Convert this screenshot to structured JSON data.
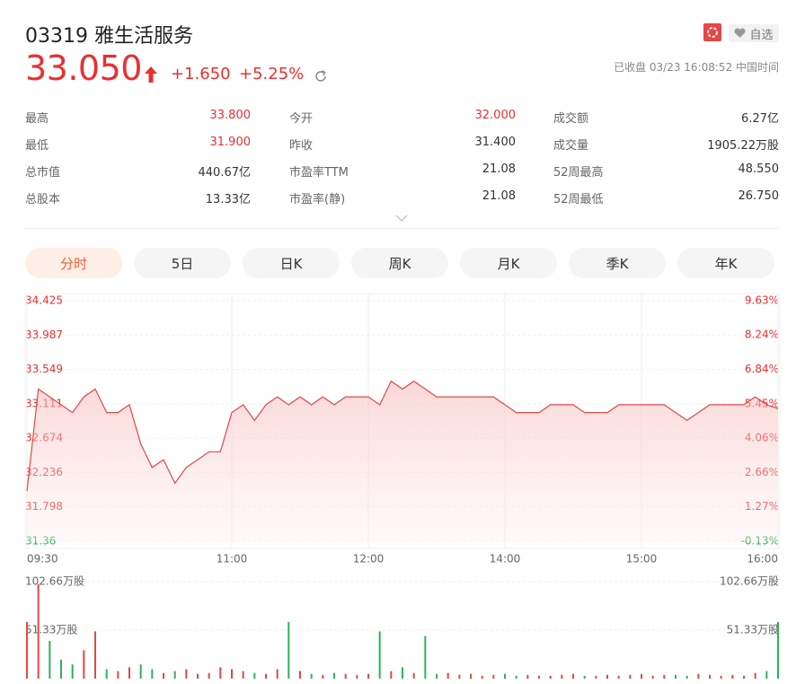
{
  "header": {
    "code": "03319",
    "name": "雅生活服务",
    "watch": "自选",
    "price": "33.050",
    "change": "+1.650",
    "change_pct": "+5.25%",
    "status": "已收盘 03/23 16:08:52 中国时间"
  },
  "stats": [
    [
      {
        "label": "最高",
        "value": "33.800",
        "color": "#e93030"
      },
      {
        "label": "今开",
        "value": "32.000",
        "color": "#e93030"
      },
      {
        "label": "成交额",
        "value": "6.27亿"
      }
    ],
    [
      {
        "label": "最低",
        "value": "31.900",
        "color": "#e93030"
      },
      {
        "label": "昨收",
        "value": "31.400"
      },
      {
        "label": "成交量",
        "value": "1905.22万股"
      }
    ],
    [
      {
        "label": "总市值",
        "value": "440.67亿"
      },
      {
        "label": "市盈率TTM",
        "value": "21.08"
      },
      {
        "label": "52周最高",
        "value": "48.550"
      }
    ],
    [
      {
        "label": "总股本",
        "value": "13.33亿"
      },
      {
        "label": "市盈率(静)",
        "value": "21.08"
      },
      {
        "label": "52周最低",
        "value": "26.750"
      }
    ]
  ],
  "tabs": {
    "items": [
      "分时",
      "5日",
      "日K",
      "周K",
      "月K",
      "季K",
      "年K"
    ],
    "active": 0
  },
  "chart_data": [
    {
      "type": "line",
      "grid": true,
      "categories": [
        "09:30",
        null,
        null,
        null,
        null,
        null,
        null,
        null,
        null,
        null,
        null,
        null,
        null,
        null,
        null,
        null,
        null,
        null,
        "11:00",
        null,
        null,
        null,
        null,
        null,
        null,
        null,
        null,
        null,
        null,
        null,
        "12:00",
        null,
        null,
        null,
        null,
        null,
        null,
        null,
        null,
        null,
        null,
        null,
        "14:00",
        null,
        null,
        null,
        null,
        null,
        null,
        null,
        null,
        null,
        null,
        null,
        "15:00",
        null,
        null,
        null,
        null,
        null,
        null,
        null,
        null,
        null,
        null,
        null,
        "16:00"
      ],
      "series": [
        {
          "color": "#e04848",
          "values": [
            32.0,
            33.3,
            33.2,
            33.1,
            33.0,
            33.2,
            33.3,
            33.0,
            33.0,
            33.1,
            32.6,
            32.3,
            32.4,
            32.1,
            32.3,
            32.4,
            32.5,
            32.5,
            33.0,
            33.1,
            32.9,
            33.1,
            33.2,
            33.1,
            33.2,
            33.1,
            33.2,
            33.1,
            33.2,
            33.2,
            33.2,
            33.1,
            33.4,
            33.3,
            33.4,
            33.3,
            33.2,
            33.2,
            33.2,
            33.2,
            33.2,
            33.2,
            33.1,
            33.0,
            33.0,
            33.0,
            33.1,
            33.1,
            33.1,
            33.0,
            33.0,
            33.0,
            33.1,
            33.1,
            33.1,
            33.1,
            33.1,
            33.0,
            32.9,
            33.0,
            33.1,
            33.1,
            33.1,
            33.1,
            33.2,
            33.1,
            33.05
          ]
        }
      ],
      "ylim": [
        31.36,
        34.425
      ],
      "yticks": [
        31.36,
        31.798,
        32.236,
        32.674,
        33.111,
        33.549,
        33.987,
        34.425
      ],
      "y2lim": [
        -0.13,
        9.63
      ],
      "y2ticks": [
        {
          "value": -0.13,
          "label": "-0.13%"
        },
        {
          "value": 1.27,
          "label": "1.27%"
        },
        {
          "value": 2.66,
          "label": "2.66%"
        },
        {
          "value": 4.06,
          "label": "4.06%"
        },
        {
          "value": 5.45,
          "label": "5.45%"
        },
        {
          "value": 6.84,
          "label": "6.84%"
        },
        {
          "value": 8.24,
          "label": "8.24%"
        },
        {
          "value": 9.63,
          "label": "9.63%"
        }
      ]
    },
    {
      "type": "bar",
      "up_color": "#e04848",
      "down_color": "#2bb35a",
      "values": [
        60,
        100,
        40,
        20,
        15,
        30,
        50,
        10,
        8,
        12,
        15,
        10,
        6,
        8,
        10,
        5,
        6,
        12,
        10,
        8,
        6,
        5,
        10,
        60,
        8,
        5,
        4,
        6,
        5,
        4,
        5,
        50,
        8,
        12,
        6,
        45,
        5,
        6,
        4,
        5,
        3,
        4,
        5,
        3,
        4,
        3,
        3,
        4,
        5,
        3,
        3,
        4,
        3,
        4,
        5,
        3,
        4,
        4,
        3,
        5,
        4,
        3,
        4,
        3,
        6,
        8,
        60
      ],
      "ylim": [
        0,
        102.66
      ],
      "yticks": [
        {
          "value": 51.33,
          "label": "51.33万股"
        },
        {
          "value": 102.66,
          "label": "102.66万股"
        }
      ]
    }
  ]
}
